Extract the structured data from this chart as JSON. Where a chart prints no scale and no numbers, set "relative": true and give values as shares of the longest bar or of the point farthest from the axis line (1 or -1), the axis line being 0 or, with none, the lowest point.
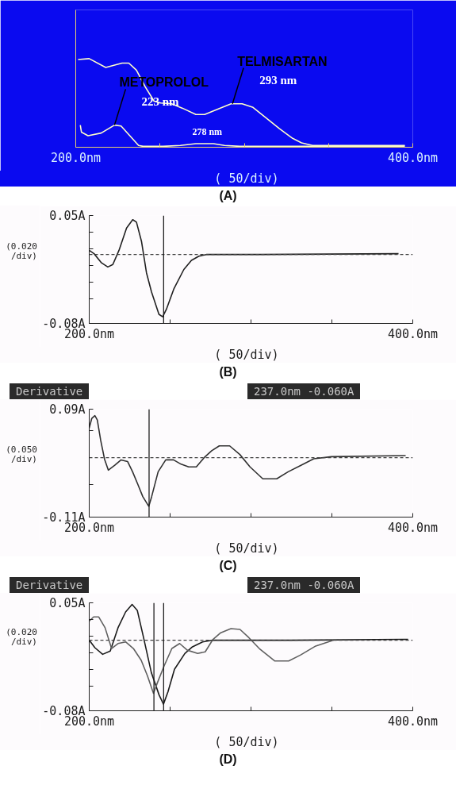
{
  "chart_data": [
    {
      "type": "line",
      "title": "(A)",
      "relative": true,
      "tick_labels": "x",
      "grid": false,
      "line_style": "solid",
      "xlim": [
        200,
        400
      ],
      "xticks": [
        {
          "value": 200,
          "label": "200.0nm"
        },
        {
          "value": 250,
          "label": null
        },
        {
          "value": 300,
          "label": null
        },
        {
          "value": 350,
          "label": null
        },
        {
          "value": 400,
          "label": "400.0nm"
        }
      ],
      "series": [
        {
          "color": "#ffffc8",
          "x": [
            201.4,
            208,
            217.8,
            227.5,
            231.5,
            236,
            241.3,
            246.5,
            250.4,
            256.9,
            263.4,
            271.3,
            276.5,
            284.3,
            292.2,
            298.7,
            305.2,
            313,
            320.9,
            328.7,
            334,
            340.5,
            349.6,
            395.3
          ],
          "values": [
            0.99,
            1.0,
            0.9,
            0.95,
            0.95,
            0.87,
            0.68,
            0.52,
            0.5,
            0.49,
            0.44,
            0.37,
            0.37,
            0.43,
            0.49,
            0.49,
            0.45,
            0.33,
            0.21,
            0.1,
            0.05,
            0.02,
            0.02,
            0.02
          ]
        },
        {
          "color": "#ffffc8",
          "x": [
            202.7,
            203.4,
            207.3,
            215.1,
            223,
            226.9,
            232.1,
            237.3,
            240,
            251.7,
            262.1,
            271.3,
            281.7,
            288.3,
            297.4,
            395.3
          ],
          "values": [
            0.25,
            0.17,
            0.13,
            0.16,
            0.25,
            0.24,
            0.13,
            0.02,
            0.01,
            0.01,
            0.02,
            0.04,
            0.04,
            0.02,
            0.01,
            0.01
          ]
        }
      ],
      "annotations": [
        "( 50/div)",
        {
          "text": "TELMISARTAN",
          "x": 293,
          "y": 0.49
        },
        {
          "text": "293 nm",
          "x": 293,
          "y": 0.49
        },
        {
          "text": "METOPROLOL",
          "x": 223,
          "y": 0.25
        },
        {
          "text": "223 nm",
          "x": 223,
          "y": 0.25
        },
        {
          "text": "278 nm",
          "x": 278,
          "y": 0.04
        }
      ]
    },
    {
      "type": "line",
      "title": "(B)",
      "grid": false,
      "line_style": "solid",
      "xlim": [
        200,
        400
      ],
      "xticks": [
        {
          "value": 200,
          "label": "200.0nm"
        },
        {
          "value": 250,
          "label": null
        },
        {
          "value": 300,
          "label": null
        },
        {
          "value": 350,
          "label": null
        },
        {
          "value": 400,
          "label": "400.0nm"
        }
      ],
      "ylim": [
        -0.08,
        0.05
      ],
      "yticks": [
        {
          "value": 0.05,
          "label": "0.05A"
        },
        {
          "value": 0.03,
          "label": null
        },
        {
          "value": 0.01,
          "label": null
        },
        {
          "value": -0.01,
          "label": null
        },
        {
          "value": -0.03,
          "label": null
        },
        {
          "value": -0.05,
          "label": null
        },
        {
          "value": -0.08,
          "label": "-0.08A"
        }
      ],
      "series": [
        {
          "color": "#202020",
          "x": [
            200,
            203,
            207.6,
            211.5,
            214.6,
            218.4,
            223.1,
            226.9,
            229.2,
            232.3,
            235.4,
            238.5,
            243.1,
            245.4,
            247.7,
            252.4,
            258.5,
            263.2,
            267.8,
            272.4,
            306.4,
            391.2
          ],
          "values": [
            0.008,
            0.004,
            -0.007,
            -0.012,
            -0.009,
            0.008,
            0.035,
            0.045,
            0.042,
            0.019,
            -0.019,
            -0.042,
            -0.069,
            -0.072,
            -0.063,
            -0.038,
            -0.015,
            -0.004,
            0.001,
            0.003,
            0.003,
            0.004
          ]
        }
      ],
      "ref_lines": [
        {
          "axis": "y",
          "value": 0.003,
          "color": "#404040",
          "line_style": "dashed"
        },
        {
          "axis": "x",
          "value": 246,
          "color": "#202020",
          "line_style": "solid"
        }
      ],
      "annotations": [
        "( 50/div)",
        "(0.020/div)"
      ]
    },
    {
      "type": "line",
      "title": "(C)",
      "grid": false,
      "line_style": "solid",
      "xlim": [
        200,
        400
      ],
      "xticks": [
        {
          "value": 200,
          "label": "200.0nm"
        },
        {
          "value": 250,
          "label": null
        },
        {
          "value": 300,
          "label": null
        },
        {
          "value": 350,
          "label": null
        },
        {
          "value": 400,
          "label": "400.0nm"
        }
      ],
      "ylim": [
        -0.11,
        0.09
      ],
      "yticks": [
        {
          "value": 0.09,
          "label": "0.09A"
        },
        {
          "value": 0.05,
          "label": null
        },
        {
          "value": -0.05,
          "label": null
        },
        {
          "value": -0.11,
          "label": "-0.11A"
        }
      ],
      "series": [
        {
          "color": "#303030",
          "x": [
            200,
            201.6,
            203.5,
            205,
            207.1,
            209.5,
            211.8,
            215.8,
            219.7,
            223.7,
            226.8,
            230,
            233.1,
            236.8,
            238.6,
            242.6,
            247.3,
            252.1,
            256.8,
            261.5,
            266.2,
            271,
            275.7,
            280.4,
            286.8,
            293.1,
            299.4,
            307.3,
            315.9,
            323,
            330.9,
            338.8,
            349.8,
            395.6
          ],
          "values": [
            0.055,
            0.073,
            0.078,
            0.07,
            0.032,
            -0.003,
            -0.023,
            -0.014,
            -0.004,
            -0.007,
            -0.026,
            -0.049,
            -0.072,
            -0.09,
            -0.072,
            -0.026,
            -0.004,
            -0.004,
            -0.012,
            -0.017,
            -0.017,
            0.0,
            0.013,
            0.022,
            0.022,
            0.006,
            -0.017,
            -0.039,
            -0.039,
            -0.026,
            -0.014,
            -0.002,
            0.002,
            0.004
          ]
        }
      ],
      "ref_lines": [
        {
          "axis": "y",
          "value": 0,
          "color": "#404040",
          "line_style": "dashed"
        },
        {
          "axis": "x",
          "value": 237,
          "color": "#202020",
          "line_style": "solid"
        }
      ],
      "annotations": [
        "Derivative",
        "237.0nm -0.060A",
        "( 50/div)",
        "(0.050/div)"
      ]
    },
    {
      "type": "line",
      "title": "(D)",
      "grid": false,
      "line_style": "solid",
      "xlim": [
        200,
        400
      ],
      "xticks": [
        {
          "value": 200,
          "label": "200.0nm"
        },
        {
          "value": 250,
          "label": null
        },
        {
          "value": 300,
          "label": null
        },
        {
          "value": 350,
          "label": null
        },
        {
          "value": 400,
          "label": "400.0nm"
        }
      ],
      "ylim": [
        -0.08,
        0.05
      ],
      "yticks": [
        {
          "value": 0.05,
          "label": "0.05A"
        },
        {
          "value": 0.03,
          "label": null
        },
        {
          "value": 0.01,
          "label": null
        },
        {
          "value": -0.01,
          "label": null
        },
        {
          "value": -0.03,
          "label": null
        },
        {
          "value": -0.05,
          "label": null
        },
        {
          "value": -0.08,
          "label": "-0.08A"
        }
      ],
      "series": [
        {
          "color": "#1a1a1a",
          "x": [
            200,
            203.5,
            208.3,
            213,
            217.8,
            222.5,
            226.5,
            229.7,
            233.6,
            238.4,
            243.2,
            245.9,
            248.7,
            252.7,
            259.1,
            263.8,
            270.1,
            276.5,
            324.1,
            397.1
          ],
          "values": [
            0.005,
            -0.004,
            -0.012,
            -0.008,
            0.02,
            0.039,
            0.048,
            0.041,
            0.008,
            -0.034,
            -0.061,
            -0.072,
            -0.057,
            -0.03,
            -0.011,
            -0.003,
            0.003,
            0.005,
            0.005,
            0.006
          ]
        },
        {
          "color": "#606060",
          "x": [
            200,
            202.7,
            205.9,
            209.8,
            213.8,
            217.8,
            222.5,
            227.3,
            232.1,
            236,
            239.7,
            242.4,
            246.3,
            251.1,
            255.9,
            260.6,
            267,
            271.7,
            276.5,
            281.3,
            287.6,
            293.2,
            298.7,
            305.1,
            314.6,
            323.3,
            330.5,
            340,
            351.1
          ],
          "values": [
            0.028,
            0.033,
            0.033,
            0.02,
            -0.005,
            0.001,
            0.003,
            -0.005,
            -0.019,
            -0.038,
            -0.059,
            -0.045,
            -0.026,
            -0.005,
            0.001,
            -0.007,
            -0.011,
            -0.009,
            0.006,
            0.014,
            0.019,
            0.018,
            0.008,
            -0.005,
            -0.02,
            -0.02,
            -0.013,
            -0.002,
            0.005
          ]
        }
      ],
      "ref_lines": [
        {
          "axis": "y",
          "value": 0.005,
          "color": "#404040",
          "line_style": "dashed"
        },
        {
          "axis": "x",
          "value": 240,
          "color": "#202020",
          "line_style": "solid"
        },
        {
          "axis": "x",
          "value": 246,
          "color": "#202020",
          "line_style": "solid"
        }
      ],
      "annotations": [
        "Derivative",
        "237.0nm -0.060A",
        "( 50/div)",
        "(0.020/div)"
      ]
    }
  ]
}
